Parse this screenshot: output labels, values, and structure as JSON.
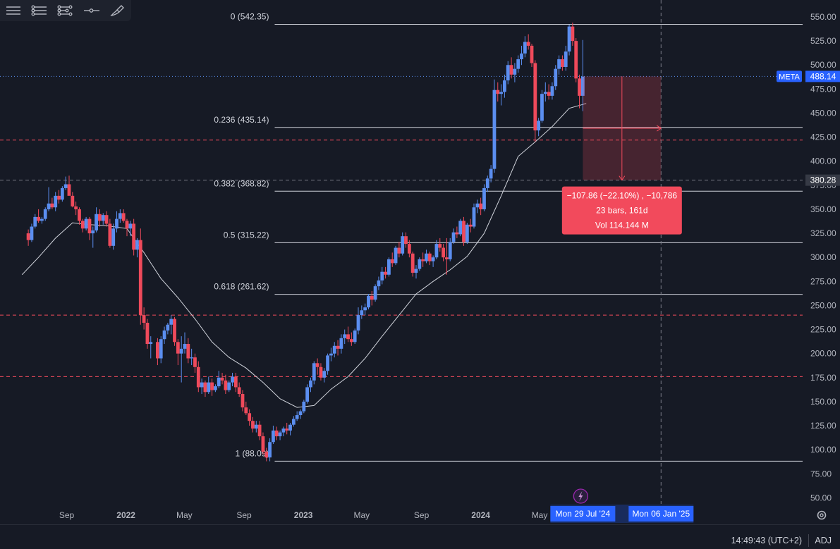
{
  "toolbar": {
    "icons": [
      "drawing-lines-icon",
      "multi-line-icon",
      "node-lines-icon",
      "horizontal-ray-icon",
      "brush-icon"
    ]
  },
  "status_bar": {
    "clock": "14:49:43 (UTC+2)",
    "adj": "ADJ"
  },
  "chart_data": {
    "type": "candlestick",
    "symbol": "META",
    "last_price": "488.14",
    "crosshair_price": "380.28",
    "ylim": [
      40,
      560
    ],
    "y_ticks": [
      50,
      75,
      100,
      125,
      150,
      175,
      200,
      225,
      250,
      275,
      300,
      325,
      350,
      375,
      400,
      425,
      450,
      475,
      500,
      525,
      550
    ],
    "y_tick_labels": [
      "50.00",
      "75.00",
      "100.00",
      "125.00",
      "150.00",
      "175.00",
      "200.00",
      "225.00",
      "250.00",
      "275.00",
      "300.00",
      "325.00",
      "350.00",
      "375.00",
      "400.00",
      "425.00",
      "450.00",
      "475.00",
      "500.00",
      "525.00",
      "550.00"
    ],
    "x_labels": [
      "Sep",
      "2022",
      "May",
      "Sep",
      "2023",
      "May",
      "Sep",
      "2024",
      "May"
    ],
    "x_label_dates": [
      "2021-09-01",
      "2022-01-01",
      "2022-05-01",
      "2022-09-01",
      "2023-01-01",
      "2023-05-01",
      "2023-09-01",
      "2024-01-01",
      "2024-05-01"
    ],
    "x_axis_badges": [
      {
        "date": "2024-07-29",
        "text": "Mon 29 Jul '24"
      },
      {
        "date": "2025-01-06",
        "text": "Mon 06 Jan '25"
      }
    ],
    "bullish_color": "#5b8ef0",
    "bearish_color": "#ef4a5b",
    "moving_average": [
      [
        "2021-06-01",
        282
      ],
      [
        "2021-07-05",
        300
      ],
      [
        "2021-08-09",
        320
      ],
      [
        "2021-09-13",
        336
      ],
      [
        "2021-10-18",
        334
      ],
      [
        "2021-11-22",
        333
      ],
      [
        "2022-01-03",
        330
      ],
      [
        "2022-02-07",
        305
      ],
      [
        "2022-03-14",
        278
      ],
      [
        "2022-04-18",
        258
      ],
      [
        "2022-05-23",
        236
      ],
      [
        "2022-06-27",
        212
      ],
      [
        "2022-08-01",
        196
      ],
      [
        "2022-09-05",
        185
      ],
      [
        "2022-10-10",
        170
      ],
      [
        "2022-11-14",
        153
      ],
      [
        "2022-12-19",
        144
      ],
      [
        "2023-01-23",
        146
      ],
      [
        "2023-02-27",
        163
      ],
      [
        "2023-04-03",
        176
      ],
      [
        "2023-05-08",
        195
      ],
      [
        "2023-06-12",
        218
      ],
      [
        "2023-07-17",
        240
      ],
      [
        "2023-08-21",
        262
      ],
      [
        "2023-09-25",
        275
      ],
      [
        "2023-10-30",
        287
      ],
      [
        "2023-12-04",
        301
      ],
      [
        "2024-01-08",
        325
      ],
      [
        "2024-02-12",
        364
      ],
      [
        "2024-03-18",
        405
      ],
      [
        "2024-04-22",
        420
      ],
      [
        "2024-05-27",
        436
      ],
      [
        "2024-07-01",
        455
      ],
      [
        "2024-08-05",
        460
      ]
    ],
    "candles": [
      [
        "2021-06-14",
        325,
        329,
        312,
        318
      ],
      [
        "2021-06-21",
        318,
        335,
        316,
        332
      ],
      [
        "2021-06-28",
        332,
        345,
        330,
        342
      ],
      [
        "2021-07-05",
        342,
        350,
        336,
        338
      ],
      [
        "2021-07-12",
        338,
        342,
        335,
        340
      ],
      [
        "2021-07-19",
        340,
        352,
        338,
        350
      ],
      [
        "2021-07-26",
        350,
        373,
        348,
        356
      ],
      [
        "2021-08-02",
        356,
        362,
        350,
        352
      ],
      [
        "2021-08-09",
        352,
        368,
        348,
        364
      ],
      [
        "2021-08-16",
        364,
        370,
        356,
        360
      ],
      [
        "2021-08-23",
        360,
        374,
        358,
        372
      ],
      [
        "2021-08-30",
        372,
        384,
        370,
        376
      ],
      [
        "2021-09-06",
        376,
        385,
        366,
        364
      ],
      [
        "2021-09-13",
        364,
        368,
        352,
        353
      ],
      [
        "2021-09-20",
        353,
        358,
        344,
        350
      ],
      [
        "2021-09-27",
        350,
        352,
        334,
        338
      ],
      [
        "2021-10-04",
        338,
        340,
        326,
        330
      ],
      [
        "2021-10-11",
        330,
        342,
        328,
        340
      ],
      [
        "2021-10-18",
        340,
        342,
        318,
        325
      ],
      [
        "2021-10-25",
        325,
        332,
        310,
        328
      ],
      [
        "2021-11-01",
        328,
        352,
        326,
        345
      ],
      [
        "2021-11-08",
        345,
        350,
        332,
        338
      ],
      [
        "2021-11-15",
        338,
        346,
        334,
        344
      ],
      [
        "2021-11-22",
        344,
        348,
        332,
        335
      ],
      [
        "2021-11-29",
        335,
        340,
        310,
        312
      ],
      [
        "2021-12-06",
        312,
        335,
        308,
        330
      ],
      [
        "2021-12-13",
        330,
        348,
        326,
        340
      ],
      [
        "2021-12-20",
        340,
        350,
        336,
        346
      ],
      [
        "2021-12-27",
        346,
        350,
        336,
        338
      ],
      [
        "2022-01-03",
        338,
        340,
        322,
        330
      ],
      [
        "2022-01-10",
        330,
        338,
        322,
        335
      ],
      [
        "2022-01-17",
        335,
        340,
        302,
        308
      ],
      [
        "2022-01-24",
        308,
        320,
        300,
        318
      ],
      [
        "2022-01-31",
        318,
        330,
        230,
        240
      ],
      [
        "2022-02-07",
        240,
        248,
        225,
        232
      ],
      [
        "2022-02-14",
        232,
        236,
        205,
        210
      ],
      [
        "2022-02-21",
        210,
        218,
        195,
        212
      ],
      [
        "2022-03-07",
        212,
        216,
        188,
        195
      ],
      [
        "2022-03-14",
        195,
        218,
        190,
        215
      ],
      [
        "2022-03-21",
        215,
        228,
        210,
        224
      ],
      [
        "2022-03-28",
        224,
        232,
        220,
        230
      ],
      [
        "2022-04-04",
        230,
        240,
        220,
        236
      ],
      [
        "2022-04-11",
        236,
        238,
        208,
        212
      ],
      [
        "2022-04-18",
        212,
        215,
        188,
        200
      ],
      [
        "2022-04-25",
        200,
        218,
        170,
        205
      ],
      [
        "2022-05-02",
        205,
        222,
        200,
        210
      ],
      [
        "2022-05-09",
        210,
        216,
        190,
        195
      ],
      [
        "2022-05-16",
        195,
        205,
        188,
        196
      ],
      [
        "2022-05-23",
        196,
        200,
        180,
        186
      ],
      [
        "2022-05-30",
        186,
        192,
        160,
        165
      ],
      [
        "2022-06-06",
        165,
        174,
        158,
        170
      ],
      [
        "2022-06-13",
        170,
        172,
        155,
        160
      ],
      [
        "2022-06-20",
        160,
        176,
        158,
        170
      ],
      [
        "2022-06-27",
        170,
        174,
        156,
        162
      ],
      [
        "2022-07-04",
        162,
        168,
        160,
        166
      ],
      [
        "2022-07-11",
        166,
        182,
        164,
        175
      ],
      [
        "2022-07-18",
        175,
        180,
        168,
        172
      ],
      [
        "2022-07-25",
        172,
        178,
        158,
        162
      ],
      [
        "2022-08-01",
        162,
        172,
        160,
        170
      ],
      [
        "2022-08-08",
        170,
        180,
        166,
        176
      ],
      [
        "2022-08-15",
        176,
        180,
        160,
        165
      ],
      [
        "2022-08-22",
        165,
        170,
        155,
        158
      ],
      [
        "2022-08-29",
        158,
        162,
        140,
        144
      ],
      [
        "2022-09-05",
        144,
        150,
        136,
        138
      ],
      [
        "2022-09-12",
        138,
        142,
        125,
        130
      ],
      [
        "2022-09-19",
        130,
        134,
        118,
        122
      ],
      [
        "2022-09-26",
        122,
        130,
        118,
        126
      ],
      [
        "2022-10-03",
        126,
        130,
        110,
        114
      ],
      [
        "2022-10-10",
        114,
        118,
        95,
        98
      ],
      [
        "2022-10-17",
        98,
        102,
        88,
        92
      ],
      [
        "2022-10-24",
        92,
        112,
        88,
        108
      ],
      [
        "2022-10-31",
        108,
        125,
        106,
        120
      ],
      [
        "2022-11-07",
        120,
        124,
        110,
        114
      ],
      [
        "2022-11-14",
        114,
        120,
        110,
        118
      ],
      [
        "2022-11-21",
        118,
        124,
        114,
        122
      ],
      [
        "2022-11-28",
        122,
        128,
        116,
        120
      ],
      [
        "2022-12-05",
        120,
        128,
        115,
        126
      ],
      [
        "2022-12-12",
        126,
        135,
        124,
        132
      ],
      [
        "2022-12-19",
        132,
        140,
        130,
        136
      ],
      [
        "2022-12-26",
        136,
        142,
        132,
        140
      ],
      [
        "2023-01-02",
        140,
        152,
        138,
        150
      ],
      [
        "2023-01-09",
        150,
        168,
        148,
        165
      ],
      [
        "2023-01-16",
        165,
        175,
        160,
        172
      ],
      [
        "2023-01-23",
        172,
        192,
        168,
        190
      ],
      [
        "2023-01-30",
        190,
        195,
        178,
        186
      ],
      [
        "2023-02-06",
        186,
        190,
        172,
        175
      ],
      [
        "2023-02-13",
        175,
        185,
        170,
        182
      ],
      [
        "2023-02-20",
        182,
        200,
        178,
        198
      ],
      [
        "2023-02-27",
        198,
        206,
        192,
        200
      ],
      [
        "2023-03-06",
        200,
        212,
        196,
        208
      ],
      [
        "2023-03-13",
        208,
        214,
        198,
        205
      ],
      [
        "2023-03-20",
        205,
        220,
        200,
        216
      ],
      [
        "2023-03-27",
        216,
        225,
        210,
        220
      ],
      [
        "2023-04-03",
        220,
        228,
        212,
        215
      ],
      [
        "2023-04-10",
        215,
        222,
        208,
        212
      ],
      [
        "2023-04-17",
        212,
        226,
        210,
        224
      ],
      [
        "2023-04-24",
        224,
        248,
        220,
        240
      ],
      [
        "2023-05-01",
        240,
        250,
        236,
        245
      ],
      [
        "2023-05-08",
        245,
        252,
        240,
        248
      ],
      [
        "2023-05-15",
        248,
        262,
        246,
        260
      ],
      [
        "2023-05-22",
        260,
        265,
        250,
        256
      ],
      [
        "2023-05-29",
        256,
        272,
        254,
        270
      ],
      [
        "2023-06-05",
        270,
        280,
        266,
        276
      ],
      [
        "2023-06-12",
        276,
        290,
        272,
        285
      ],
      [
        "2023-06-19",
        285,
        290,
        278,
        282
      ],
      [
        "2023-06-26",
        282,
        300,
        280,
        298
      ],
      [
        "2023-07-03",
        298,
        305,
        290,
        294
      ],
      [
        "2023-07-10",
        294,
        312,
        292,
        310
      ],
      [
        "2023-07-17",
        310,
        316,
        300,
        304
      ],
      [
        "2023-07-24",
        304,
        326,
        302,
        322
      ],
      [
        "2023-07-31",
        322,
        326,
        310,
        314
      ],
      [
        "2023-08-07",
        314,
        318,
        300,
        304
      ],
      [
        "2023-08-14",
        304,
        306,
        280,
        284
      ],
      [
        "2023-08-21",
        284,
        292,
        278,
        288
      ],
      [
        "2023-08-28",
        288,
        300,
        286,
        298
      ],
      [
        "2023-09-04",
        298,
        305,
        290,
        296
      ],
      [
        "2023-09-11",
        296,
        308,
        294,
        304
      ],
      [
        "2023-09-18",
        304,
        306,
        292,
        296
      ],
      [
        "2023-09-25",
        296,
        302,
        290,
        300
      ],
      [
        "2023-10-02",
        300,
        318,
        298,
        314
      ],
      [
        "2023-10-09",
        314,
        320,
        306,
        310
      ],
      [
        "2023-10-16",
        310,
        314,
        296,
        300
      ],
      [
        "2023-10-23",
        300,
        320,
        282,
        298
      ],
      [
        "2023-10-30",
        298,
        320,
        296,
        316
      ],
      [
        "2023-11-06",
        316,
        330,
        314,
        326
      ],
      [
        "2023-11-13",
        326,
        332,
        320,
        324
      ],
      [
        "2023-11-20",
        324,
        340,
        322,
        338
      ],
      [
        "2023-11-27",
        338,
        342,
        312,
        316
      ],
      [
        "2023-12-04",
        316,
        336,
        314,
        334
      ],
      [
        "2023-12-11",
        334,
        340,
        326,
        332
      ],
      [
        "2023-12-18",
        332,
        356,
        330,
        352
      ],
      [
        "2023-12-25",
        352,
        360,
        346,
        356
      ],
      [
        "2024-01-01",
        356,
        362,
        344,
        350
      ],
      [
        "2024-01-08",
        350,
        376,
        348,
        372
      ],
      [
        "2024-01-15",
        372,
        385,
        368,
        382
      ],
      [
        "2024-01-22",
        382,
        396,
        378,
        392
      ],
      [
        "2024-01-29",
        392,
        485,
        388,
        474
      ],
      [
        "2024-02-05",
        474,
        482,
        462,
        470
      ],
      [
        "2024-02-12",
        470,
        480,
        458,
        472
      ],
      [
        "2024-02-19",
        472,
        490,
        466,
        484
      ],
      [
        "2024-02-26",
        484,
        504,
        480,
        500
      ],
      [
        "2024-03-04",
        500,
        508,
        486,
        490
      ],
      [
        "2024-03-11",
        490,
        502,
        482,
        496
      ],
      [
        "2024-03-18",
        496,
        510,
        492,
        506
      ],
      [
        "2024-03-25",
        506,
        520,
        500,
        512
      ],
      [
        "2024-04-01",
        512,
        530,
        508,
        524
      ],
      [
        "2024-04-08",
        524,
        532,
        516,
        520
      ],
      [
        "2024-04-15",
        520,
        522,
        498,
        502
      ],
      [
        "2024-04-22",
        502,
        505,
        420,
        432
      ],
      [
        "2024-04-29",
        432,
        445,
        426,
        442
      ],
      [
        "2024-05-06",
        442,
        474,
        440,
        470
      ],
      [
        "2024-05-13",
        470,
        482,
        462,
        472
      ],
      [
        "2024-05-20",
        472,
        480,
        464,
        468
      ],
      [
        "2024-05-27",
        468,
        482,
        464,
        478
      ],
      [
        "2024-06-03",
        478,
        500,
        474,
        496
      ],
      [
        "2024-06-10",
        496,
        510,
        490,
        506
      ],
      [
        "2024-06-17",
        506,
        510,
        494,
        498
      ],
      [
        "2024-06-24",
        498,
        520,
        494,
        514
      ],
      [
        "2024-07-01",
        514,
        542,
        510,
        540
      ],
      [
        "2024-07-08",
        540,
        544,
        520,
        525
      ],
      [
        "2024-07-15",
        525,
        528,
        482,
        486
      ],
      [
        "2024-07-22",
        486,
        490,
        455,
        468
      ],
      [
        "2024-07-29",
        468,
        526,
        452,
        488
      ]
    ],
    "fibonacci_levels": [
      {
        "label": "0 (542.35)",
        "value": 542.35
      },
      {
        "label": "0.236 (435.14)",
        "value": 435.14
      },
      {
        "label": "0.382 (368.82)",
        "value": 368.82
      },
      {
        "label": "0.5 (315.22)",
        "value": 315.22
      },
      {
        "label": "0.618 (261.62)",
        "value": 261.62
      },
      {
        "label": "1 (88.09)",
        "value": 88.09
      }
    ],
    "fib_start_date": "2022-11-03",
    "alert_levels": [
      422,
      240,
      176
    ],
    "last_price_line": 488.14,
    "crosshair_line": 380.28,
    "crosshair_date": "2025-01-06",
    "measurement": {
      "from_date": "2024-07-29",
      "to_date": "2025-01-06",
      "from_price": 488.14,
      "to_price": 380.28,
      "color": "#f24a5c",
      "lines": [
        "−107.86 (−22.10%) , −10,786",
        "23 bars, 161d",
        "Vol 114.144 M"
      ]
    }
  }
}
